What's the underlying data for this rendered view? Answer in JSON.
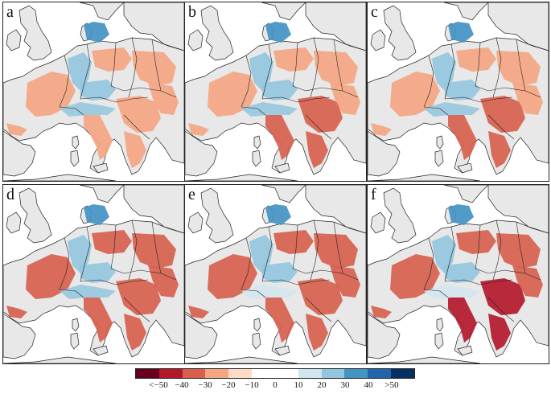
{
  "panels": [
    {
      "id": "a",
      "intensity": 0.3
    },
    {
      "id": "b",
      "intensity": 0.42
    },
    {
      "id": "c",
      "intensity": 0.52
    },
    {
      "id": "d",
      "intensity": 0.68
    },
    {
      "id": "e",
      "intensity": 0.85
    },
    {
      "id": "f",
      "intensity": 1.0
    }
  ],
  "colors": {
    "land": "#e8e8e8",
    "sea": "#ffffff",
    "border": "#222222"
  },
  "colorbar": {
    "colors": [
      "#67001f",
      "#b2182b",
      "#d6604d",
      "#f4a582",
      "#fddbc7",
      "#ffffff",
      "#ffffff",
      "#d1e5f0",
      "#92c5de",
      "#4393c3",
      "#2166ac",
      "#053061"
    ],
    "tick_labels": [
      "<−50",
      "−40",
      "−30",
      "−20",
      "−10",
      "0",
      "10",
      "20",
      "30",
      "40",
      ">50"
    ]
  }
}
